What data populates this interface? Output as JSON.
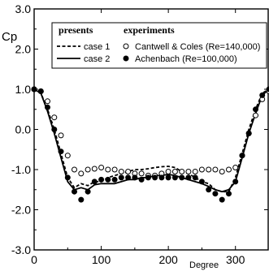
{
  "chart_data": {
    "type": "line",
    "xlabel": "Degree",
    "ylabel": "Cp",
    "xlim": [
      0,
      350
    ],
    "ylim": [
      -3.0,
      3.0
    ],
    "x_ticks": [
      {
        "value": 0,
        "label": "0"
      },
      {
        "value": 100,
        "label": "100"
      },
      {
        "value": 200,
        "label": "200"
      },
      {
        "value": 300,
        "label": "300"
      }
    ],
    "y_ticks": [
      {
        "value": 3,
        "label": "3.0"
      },
      {
        "value": 2,
        "label": "2.0"
      },
      {
        "value": 1,
        "label": "1.0"
      },
      {
        "value": 0,
        "label": "0.0"
      },
      {
        "value": -1,
        "label": "-1.0"
      },
      {
        "value": -2,
        "label": "-2.0"
      },
      {
        "value": -3,
        "label": "-3.0"
      }
    ],
    "grid": false,
    "legend": {
      "placement": "top",
      "groups": [
        {
          "title": "presents",
          "entries": [
            "case 1",
            "case 2"
          ]
        },
        {
          "title": "experiments",
          "entries": [
            "Cantwell & Coles (Re=140,000)",
            "Achenbach (Re=100,000)"
          ]
        }
      ]
    },
    "series": [
      {
        "name": "case 1",
        "style": "dashed",
        "color": "#000000",
        "x": [
          0,
          10,
          20,
          30,
          40,
          50,
          60,
          70,
          80,
          90,
          100,
          110,
          120,
          130,
          140,
          150,
          160,
          170,
          180,
          190,
          200,
          210,
          220,
          230,
          240,
          250,
          260,
          270,
          280,
          290,
          300,
          310,
          320,
          330,
          340,
          350
        ],
        "y": [
          1.0,
          0.9,
          0.5,
          0.0,
          -0.6,
          -1.2,
          -1.45,
          -1.35,
          -1.4,
          -1.3,
          -1.3,
          -1.2,
          -1.15,
          -1.1,
          -1.05,
          -1.0,
          -1.0,
          -0.98,
          -0.95,
          -0.93,
          -0.92,
          -0.95,
          -1.05,
          -1.1,
          -1.2,
          -1.3,
          -1.35,
          -1.5,
          -1.55,
          -1.55,
          -1.2,
          -0.6,
          0.0,
          0.5,
          0.9,
          1.0
        ]
      },
      {
        "name": "case 2",
        "style": "solid",
        "color": "#000000",
        "x": [
          0,
          10,
          20,
          30,
          40,
          50,
          60,
          70,
          80,
          90,
          100,
          110,
          120,
          130,
          140,
          150,
          160,
          170,
          180,
          190,
          200,
          210,
          220,
          230,
          240,
          250,
          260,
          270,
          280,
          290,
          300,
          310,
          320,
          330,
          340,
          350
        ],
        "y": [
          1.0,
          0.9,
          0.45,
          -0.1,
          -0.7,
          -1.3,
          -1.5,
          -1.45,
          -1.5,
          -1.38,
          -1.35,
          -1.35,
          -1.35,
          -1.3,
          -1.25,
          -1.25,
          -1.2,
          -1.2,
          -1.15,
          -1.15,
          -1.12,
          -1.15,
          -1.2,
          -1.25,
          -1.3,
          -1.35,
          -1.42,
          -1.5,
          -1.55,
          -1.5,
          -1.3,
          -0.7,
          -0.1,
          0.4,
          0.85,
          1.0
        ]
      },
      {
        "name": "Cantwell & Coles (Re=140,000)",
        "style": "open-circle",
        "color": "#000000",
        "x": [
          0,
          10,
          20,
          30,
          40,
          50,
          60,
          70,
          80,
          90,
          100,
          110,
          120,
          130,
          140,
          150,
          160,
          170,
          180,
          190,
          200,
          210,
          220,
          230,
          240,
          250,
          260,
          270,
          280,
          290,
          300,
          310,
          320,
          330,
          340,
          350
        ],
        "y": [
          1.0,
          0.95,
          0.7,
          0.3,
          -0.15,
          -0.65,
          -1.0,
          -1.1,
          -1.0,
          -0.98,
          -0.95,
          -1.0,
          -1.0,
          -1.05,
          -1.05,
          -1.1,
          -1.1,
          -1.15,
          -1.15,
          -1.1,
          -1.05,
          -1.05,
          -1.05,
          -1.05,
          -1.05,
          -1.0,
          -1.0,
          -1.0,
          -1.05,
          -1.0,
          -0.95,
          -0.65,
          -0.1,
          0.35,
          0.75,
          0.95
        ]
      },
      {
        "name": "Achenbach (Re=100,000)",
        "style": "filled-circle",
        "color": "#000000",
        "x": [
          0,
          10,
          20,
          30,
          40,
          50,
          60,
          70,
          80,
          90,
          100,
          110,
          120,
          130,
          140,
          150,
          160,
          170,
          180,
          190,
          200,
          210,
          220,
          230,
          240,
          250,
          260,
          270,
          280,
          290,
          300,
          310,
          320,
          330,
          340,
          350
        ],
        "y": [
          1.0,
          0.95,
          0.55,
          0.0,
          -0.55,
          -1.2,
          -1.55,
          -1.75,
          -1.55,
          -1.3,
          -1.25,
          -1.25,
          -1.25,
          -1.2,
          -1.2,
          -1.2,
          -1.25,
          -1.2,
          -1.2,
          -1.2,
          -1.2,
          -1.2,
          -1.2,
          -1.2,
          -1.2,
          -1.3,
          -1.5,
          -1.6,
          -1.75,
          -1.6,
          -1.3,
          -0.65,
          -0.1,
          0.5,
          0.85,
          1.0
        ]
      }
    ]
  }
}
